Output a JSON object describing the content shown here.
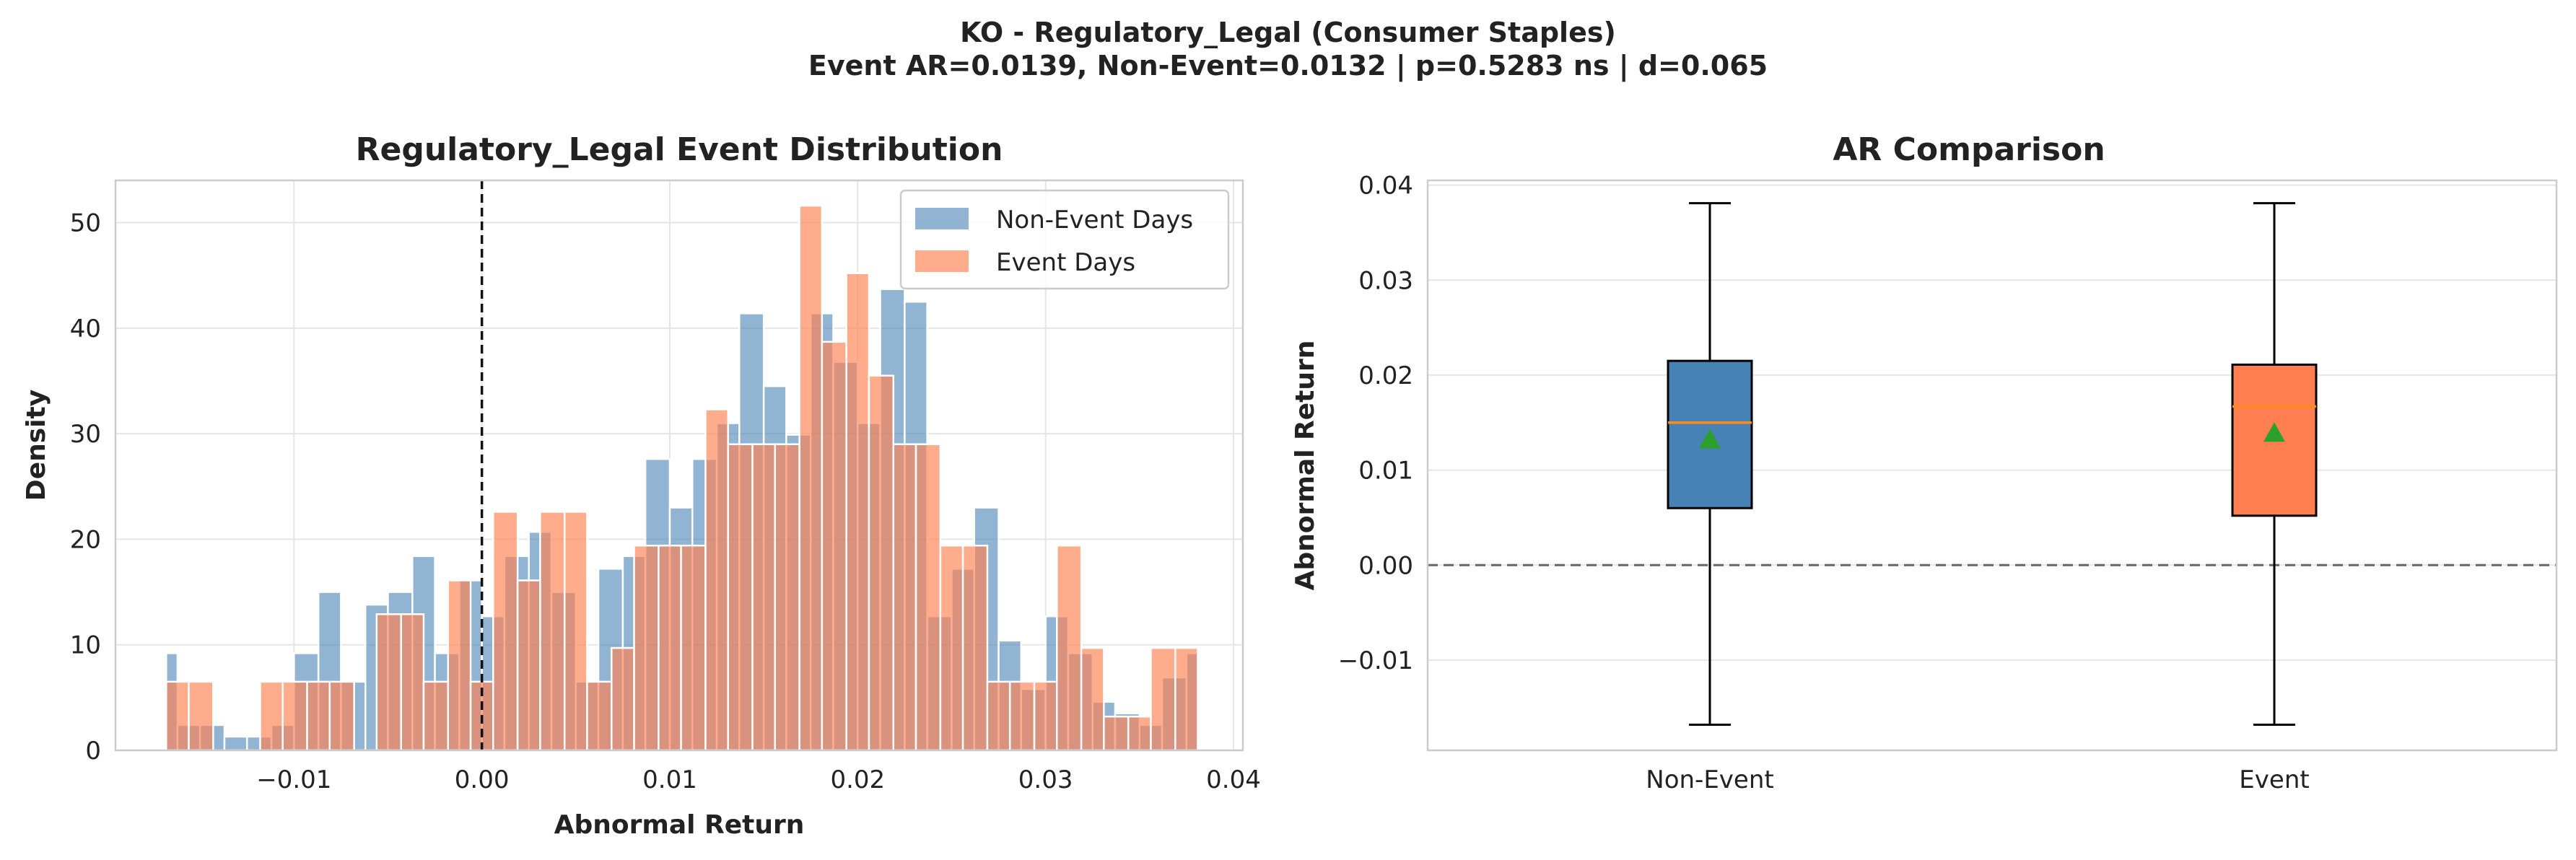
{
  "figure": {
    "title_line1": "KO - Regulatory_Legal (Consumer Staples)",
    "title_line2": "Event AR=0.0139, Non-Event=0.0132 | p=0.5283 ns | d=0.065"
  },
  "colors": {
    "non_event": "#4682b4",
    "event": "#ff7f50",
    "median": "#ff8c1a",
    "mean_marker": "#2ca02c",
    "grid": "#e5e5e5",
    "axes_edge": "#cccccc"
  },
  "chart_data": [
    {
      "type": "bar",
      "subtype": "histogram",
      "title": "Regulatory_Legal Event Distribution",
      "xlabel": "Abnormal Return",
      "ylabel": "Density",
      "xlim": [
        -0.0195,
        0.0405
      ],
      "ylim": [
        0,
        54
      ],
      "xticks": [
        -0.01,
        0.0,
        0.01,
        0.02,
        0.03,
        0.04
      ],
      "xtick_labels": [
        "−0.01",
        "0.00",
        "0.01",
        "0.02",
        "0.03",
        "0.04"
      ],
      "yticks": [
        0,
        10,
        20,
        30,
        40,
        50
      ],
      "ytick_labels": [
        "0",
        "10",
        "20",
        "30",
        "40",
        "50"
      ],
      "grid": true,
      "legend_position": "top-right",
      "vline": {
        "x": 0.0,
        "style": "dashed"
      },
      "bin_edges": [
        -0.0168,
        -0.0161,
        -0.0154,
        -0.0147,
        -0.014,
        -0.0133,
        -0.0126,
        -0.0119,
        -0.0112,
        -0.0105,
        -0.0098,
        -0.0091,
        -0.0084,
        -0.0077,
        -0.007,
        -0.0063,
        -0.0056,
        -0.0049,
        -0.0042,
        -0.0035,
        -0.0028,
        -0.0021,
        -0.0014,
        -0.0007,
        0.0,
        0.0007,
        0.0014,
        0.0021,
        0.0028,
        0.0035,
        0.0042,
        0.0049,
        0.0056,
        0.0063,
        0.007,
        0.0077,
        0.0084,
        0.0091,
        0.0098,
        0.0105,
        0.0112,
        0.0119,
        0.0126,
        0.0133,
        0.014,
        0.0147,
        0.0154,
        0.0161,
        0.0168,
        0.0175,
        0.0182,
        0.0189,
        0.0196,
        0.0203,
        0.021,
        0.0217,
        0.0224,
        0.0231,
        0.0238,
        0.0245,
        0.0252,
        0.0259,
        0.0266,
        0.0273,
        0.028,
        0.0287,
        0.0294,
        0.0301,
        0.0308,
        0.0315,
        0.0322,
        0.0329,
        0.0336,
        0.0343,
        0.035,
        0.0357,
        0.0364,
        0.0371,
        0.0378,
        0.0385
      ],
      "series": [
        {
          "name": "Non-Event Days",
          "bins": [
            [
              -0.0168,
              -0.0162,
              9.2
            ],
            [
              -0.0162,
              -0.015,
              2.4
            ],
            [
              -0.015,
              -0.0137,
              2.4
            ],
            [
              -0.0137,
              -0.0125,
              1.3
            ],
            [
              -0.0125,
              -0.0112,
              1.3
            ],
            [
              -0.0112,
              -0.01,
              2.4
            ],
            [
              -0.01,
              -0.0087,
              9.2
            ],
            [
              -0.0087,
              -0.0075,
              15.0
            ],
            [
              -0.0075,
              -0.0062,
              6.5
            ],
            [
              -0.0062,
              -0.005,
              13.8
            ],
            [
              -0.005,
              -0.0037,
              15.0
            ],
            [
              -0.0037,
              -0.0025,
              18.4
            ],
            [
              -0.0025,
              -0.0012,
              9.2
            ],
            [
              -0.0012,
              0.0,
              16.1
            ],
            [
              0.0,
              0.0012,
              12.7
            ],
            [
              0.0012,
              0.0025,
              18.4
            ],
            [
              0.0025,
              0.0037,
              20.7
            ],
            [
              0.0037,
              0.005,
              15.0
            ],
            [
              0.005,
              0.0062,
              6.5
            ],
            [
              0.0062,
              0.0075,
              17.2
            ],
            [
              0.0075,
              0.0087,
              18.4
            ],
            [
              0.0087,
              0.01,
              27.6
            ],
            [
              0.01,
              0.0112,
              23.0
            ],
            [
              0.0112,
              0.0125,
              27.6
            ],
            [
              0.0125,
              0.0137,
              31.0
            ],
            [
              0.0137,
              0.015,
              41.4
            ],
            [
              0.015,
              0.0162,
              34.5
            ],
            [
              0.0162,
              0.0175,
              29.9
            ],
            [
              0.0175,
              0.0187,
              41.4
            ],
            [
              0.0187,
              0.02,
              36.8
            ],
            [
              0.02,
              0.0212,
              31.0
            ],
            [
              0.0212,
              0.0225,
              43.7
            ],
            [
              0.0225,
              0.0237,
              42.5
            ],
            [
              0.0237,
              0.025,
              12.7
            ],
            [
              0.025,
              0.0262,
              17.2
            ],
            [
              0.0262,
              0.0275,
              23.0
            ],
            [
              0.0275,
              0.0287,
              10.4
            ],
            [
              0.0287,
              0.03,
              5.8
            ],
            [
              0.03,
              0.0312,
              12.7
            ],
            [
              0.0312,
              0.0325,
              9.2
            ],
            [
              0.0325,
              0.0337,
              4.6
            ],
            [
              0.0337,
              0.035,
              3.5
            ],
            [
              0.035,
              0.0362,
              2.4
            ],
            [
              0.0362,
              0.0375,
              6.9
            ],
            [
              0.0375,
              0.0381,
              9.2
            ]
          ]
        },
        {
          "name": "Event Days",
          "bins": [
            [
              -0.0168,
              -0.0156,
              6.5
            ],
            [
              -0.0156,
              -0.0143,
              6.5
            ],
            [
              -0.0143,
              -0.0118,
              0.0
            ],
            [
              -0.0118,
              -0.0106,
              6.5
            ],
            [
              -0.0106,
              -0.0093,
              6.5
            ],
            [
              -0.0093,
              -0.0081,
              6.5
            ],
            [
              -0.0081,
              -0.0068,
              6.5
            ],
            [
              -0.0068,
              -0.0056,
              0.0
            ],
            [
              -0.0056,
              -0.0043,
              12.9
            ],
            [
              -0.0043,
              -0.0031,
              12.9
            ],
            [
              -0.0031,
              -0.0018,
              6.5
            ],
            [
              -0.0018,
              -0.0006,
              16.1
            ],
            [
              -0.0006,
              0.0006,
              6.5
            ],
            [
              0.0006,
              0.0019,
              22.6
            ],
            [
              0.0019,
              0.0031,
              16.1
            ],
            [
              0.0031,
              0.0044,
              22.6
            ],
            [
              0.0044,
              0.0056,
              22.6
            ],
            [
              0.0056,
              0.0069,
              6.5
            ],
            [
              0.0069,
              0.0081,
              9.7
            ],
            [
              0.0081,
              0.0094,
              19.4
            ],
            [
              0.0094,
              0.0106,
              19.4
            ],
            [
              0.0106,
              0.0119,
              19.4
            ],
            [
              0.0119,
              0.0131,
              32.3
            ],
            [
              0.0131,
              0.0144,
              29.0
            ],
            [
              0.0144,
              0.0156,
              29.0
            ],
            [
              0.0156,
              0.0169,
              29.0
            ],
            [
              0.0169,
              0.0181,
              51.6
            ],
            [
              0.0181,
              0.0194,
              38.7
            ],
            [
              0.0194,
              0.0206,
              45.2
            ],
            [
              0.0206,
              0.0219,
              35.5
            ],
            [
              0.0219,
              0.0231,
              29.0
            ],
            [
              0.0231,
              0.0244,
              29.0
            ],
            [
              0.0244,
              0.0256,
              19.4
            ],
            [
              0.0256,
              0.0269,
              19.4
            ],
            [
              0.0269,
              0.0281,
              6.5
            ],
            [
              0.0281,
              0.0294,
              6.5
            ],
            [
              0.0294,
              0.0306,
              6.5
            ],
            [
              0.0306,
              0.0319,
              19.4
            ],
            [
              0.0319,
              0.0331,
              9.7
            ],
            [
              0.0331,
              0.0344,
              3.2
            ],
            [
              0.0344,
              0.0356,
              3.2
            ],
            [
              0.0356,
              0.0369,
              9.7
            ],
            [
              0.0369,
              0.0381,
              9.7
            ]
          ]
        }
      ]
    },
    {
      "type": "box",
      "title": "AR Comparison",
      "xlabel": "",
      "ylabel": "Abnormal Return",
      "ylim": [
        -0.0195,
        0.0405
      ],
      "yticks": [
        -0.01,
        0.0,
        0.01,
        0.02,
        0.03,
        0.04
      ],
      "ytick_labels": [
        "−0.01",
        "0.00",
        "0.01",
        "0.02",
        "0.03",
        "0.04"
      ],
      "grid": true,
      "hline": {
        "y": 0.0,
        "style": "dashed"
      },
      "categories": [
        "Non-Event",
        "Event"
      ],
      "boxes": [
        {
          "name": "Non-Event",
          "whisker_low": -0.0168,
          "q1": 0.006,
          "median": 0.015,
          "q3": 0.0215,
          "whisker_high": 0.0381,
          "mean": 0.0132
        },
        {
          "name": "Event",
          "whisker_low": -0.0168,
          "q1": 0.0052,
          "median": 0.0167,
          "q3": 0.0211,
          "whisker_high": 0.0381,
          "mean": 0.0139
        }
      ]
    }
  ]
}
